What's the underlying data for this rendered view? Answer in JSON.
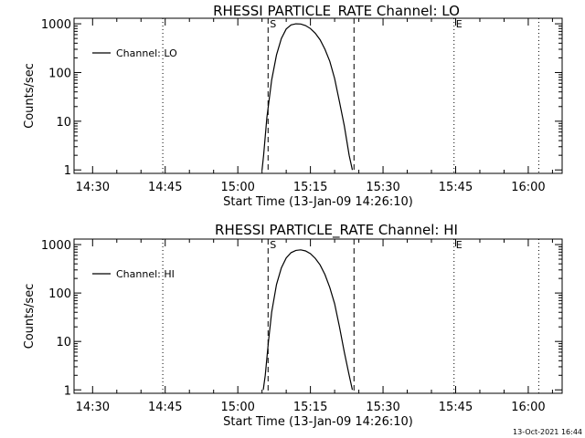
{
  "footer": {
    "timestamp": "13-Oct-2021 16:44"
  },
  "chart_data": [
    {
      "type": "line",
      "title": "RHESSI PARTICLE_RATE Channel: LO",
      "xlabel": "Start Time (13-Jan-09 14:26:10)",
      "ylabel": "Counts/sec",
      "yscale": "log",
      "ylim": [
        0.85,
        1300
      ],
      "xlim": [
        "14:26:10",
        "16:07:00"
      ],
      "x_ticks": [
        "14:30",
        "14:45",
        "15:00",
        "15:15",
        "15:30",
        "15:45",
        "16:00"
      ],
      "y_ticks": [
        "1",
        "10",
        "100",
        "1000"
      ],
      "legend": {
        "position": "top-left",
        "entries": [
          "Channel: LO"
        ]
      },
      "markers": [
        {
          "label": "S",
          "time": "15:06:15",
          "style": "dashed"
        },
        {
          "label": "",
          "time": "15:24:00",
          "style": "dashed"
        },
        {
          "label": "",
          "time": "14:44:30",
          "style": "dotted"
        },
        {
          "label": "E",
          "time": "15:44:40",
          "style": "dotted"
        },
        {
          "label": "",
          "time": "16:02:10",
          "style": "dotted"
        }
      ],
      "series": [
        {
          "name": "Channel: LO",
          "x": [
            "15:05:00",
            "15:05:20",
            "15:06:00",
            "15:07:00",
            "15:08:00",
            "15:09:00",
            "15:10:00",
            "15:11:00",
            "15:12:00",
            "15:13:00",
            "15:14:00",
            "15:15:00",
            "15:16:00",
            "15:17:00",
            "15:18:00",
            "15:19:00",
            "15:20:00",
            "15:21:00",
            "15:22:00",
            "15:23:00",
            "15:23:40"
          ],
          "y": [
            1,
            2,
            12,
            70,
            230,
            500,
            780,
            950,
            1000,
            990,
            920,
            800,
            640,
            470,
            300,
            170,
            75,
            25,
            8,
            2,
            1
          ]
        }
      ]
    },
    {
      "type": "line",
      "title": "RHESSI PARTICLE_RATE Channel: HI",
      "xlabel": "Start Time (13-Jan-09 14:26:10)",
      "ylabel": "Counts/sec",
      "yscale": "log",
      "ylim": [
        0.85,
        1300
      ],
      "xlim": [
        "14:26:10",
        "16:07:00"
      ],
      "x_ticks": [
        "14:30",
        "14:45",
        "15:00",
        "15:15",
        "15:30",
        "15:45",
        "16:00"
      ],
      "y_ticks": [
        "1",
        "10",
        "100",
        "1000"
      ],
      "legend": {
        "position": "top-left",
        "entries": [
          "Channel: HI"
        ]
      },
      "markers": [
        {
          "label": "S",
          "time": "15:06:15",
          "style": "dashed"
        },
        {
          "label": "",
          "time": "15:24:00",
          "style": "dashed"
        },
        {
          "label": "",
          "time": "14:44:30",
          "style": "dotted"
        },
        {
          "label": "E",
          "time": "15:44:40",
          "style": "dotted"
        },
        {
          "label": "",
          "time": "16:02:10",
          "style": "dotted"
        }
      ],
      "series": [
        {
          "name": "Channel: HI",
          "x": [
            "15:05:15",
            "15:05:40",
            "15:06:20",
            "15:07:00",
            "15:08:00",
            "15:09:00",
            "15:10:00",
            "15:11:00",
            "15:12:00",
            "15:13:00",
            "15:14:00",
            "15:15:00",
            "15:16:00",
            "15:17:00",
            "15:18:00",
            "15:19:00",
            "15:20:00",
            "15:21:00",
            "15:22:00",
            "15:23:00",
            "15:23:40"
          ],
          "y": [
            1,
            2,
            10,
            40,
            150,
            330,
            530,
            680,
            760,
            780,
            740,
            650,
            520,
            380,
            240,
            130,
            60,
            20,
            6,
            2,
            1
          ]
        }
      ]
    }
  ]
}
